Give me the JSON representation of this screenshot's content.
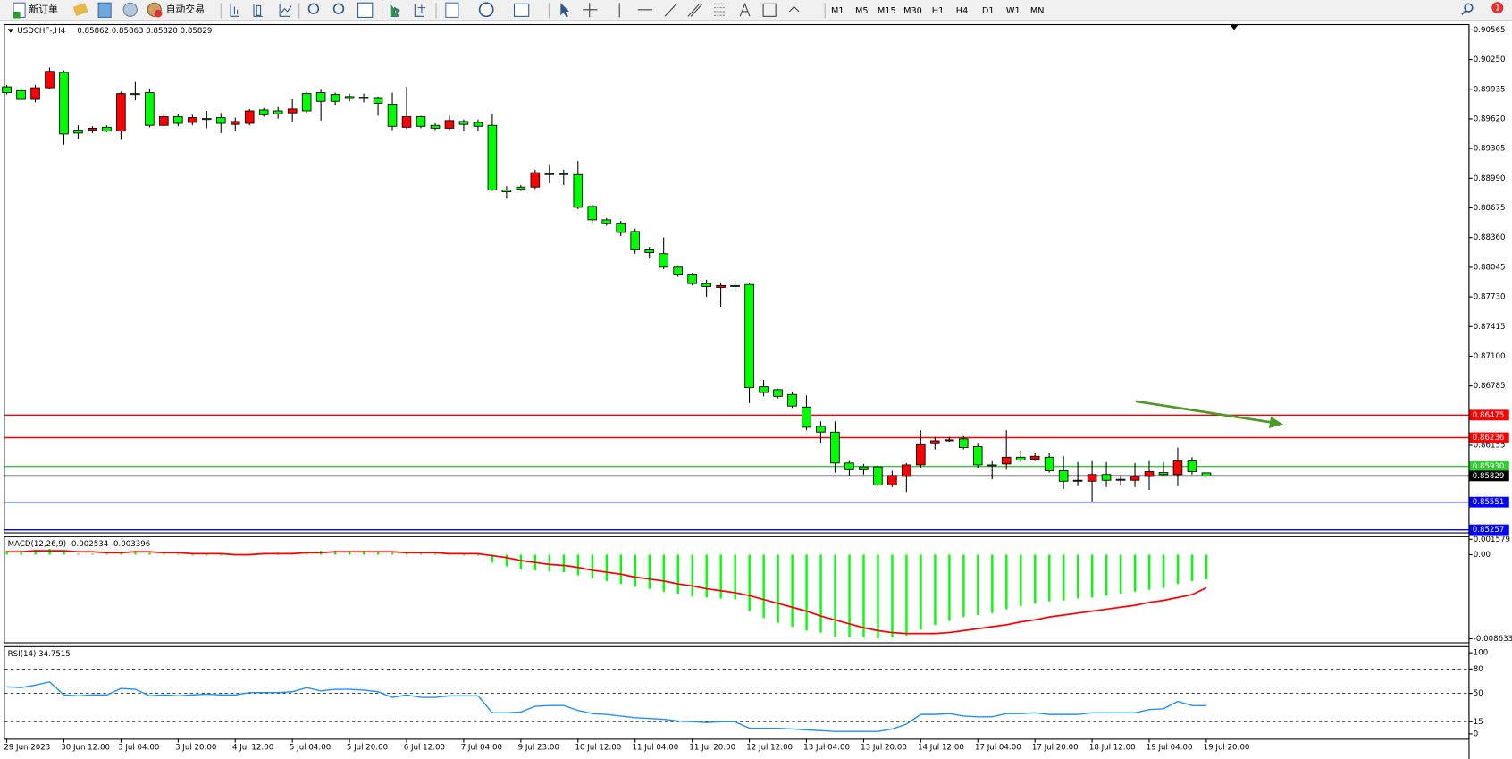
{
  "toolbar": {
    "new_order": "新订单",
    "auto_trading": "自动交易",
    "timeframes": [
      "M1",
      "M5",
      "M15",
      "M30",
      "H1",
      "H4",
      "D1",
      "W1",
      "MN"
    ],
    "notifications": "1"
  },
  "chart_data": {
    "type": "candlestick",
    "title": "USDCHF-,H4",
    "info": "0.85862 0.85863 0.85820 0.85829",
    "up_color": "#ff0000",
    "down_color": "#00ff00",
    "wick_color": "#000000",
    "categories": [
      "29 Jun 2023",
      null,
      null,
      null,
      "30 Jun 12:00",
      null,
      null,
      null,
      "3 Jul 04:00",
      null,
      null,
      null,
      "3 Jul 20:00",
      null,
      null,
      null,
      "4 Jul 12:00",
      null,
      null,
      null,
      "5 Jul 04:00",
      null,
      null,
      null,
      "5 Jul 20:00",
      null,
      null,
      null,
      "6 Jul 12:00",
      null,
      null,
      null,
      "7 Jul 04:00",
      null,
      null,
      null,
      "9 Jul 23:00",
      null,
      null,
      null,
      "10 Jul 12:00",
      null,
      null,
      null,
      "11 Jul 04:00",
      null,
      null,
      null,
      "11 Jul 20:00",
      null,
      null,
      null,
      "12 Jul 12:00",
      null,
      null,
      null,
      "13 Jul 04:00",
      null,
      null,
      null,
      "13 Jul 20:00",
      null,
      null,
      null,
      "14 Jul 12:00",
      null,
      null,
      null,
      "17 Jul 04:00",
      null,
      null,
      null,
      "17 Jul 20:00",
      null,
      null,
      null,
      "18 Jul 12:00",
      null,
      null,
      null,
      "19 Jul 04:00",
      null,
      null,
      null,
      "19 Jul 20:00"
    ],
    "open": [
      0.89961,
      0.8992,
      0.89828,
      0.89951,
      0.90114,
      0.895,
      0.895,
      0.89531,
      0.8949,
      0.89889,
      0.89899,
      0.89551,
      0.89643,
      0.89582,
      0.89623,
      0.89633,
      0.89561,
      0.89572,
      0.89715,
      0.89705,
      0.89684,
      0.89889,
      0.89899,
      0.89879,
      0.89858,
      0.89848,
      0.89838,
      0.89777,
      0.89531,
      0.89643,
      0.89551,
      0.89521,
      0.89592,
      0.89582,
      0.89551,
      0.88865,
      0.88896,
      0.88896,
      0.89039,
      0.89039,
      0.89029,
      0.88691,
      0.88548,
      0.88507,
      0.88425,
      0.8823,
      0.88189,
      0.88046,
      0.87964,
      0.87872,
      0.87831,
      0.87851,
      0.87862,
      0.86776,
      0.86745,
      0.86694,
      0.86561,
      0.86356,
      0.86295,
      0.85967,
      0.85926,
      0.85926,
      0.85732,
      0.85824,
      0.85947,
      0.86172,
      0.86203,
      0.86223,
      0.86141,
      0.85947,
      0.85957,
      0.86029,
      0.86008,
      0.86029,
      0.85885,
      0.85773,
      0.85773,
      0.85844,
      0.85793,
      0.85783,
      0.85824,
      0.85865,
      0.85844,
      0.85988,
      0.85862
    ],
    "high": [
      0.89981,
      0.8994,
      0.89981,
      0.90166,
      0.90135,
      0.89551,
      0.89541,
      0.89551,
      0.8991,
      0.90012,
      0.8994,
      0.89674,
      0.89674,
      0.89664,
      0.89705,
      0.89684,
      0.89633,
      0.89725,
      0.89736,
      0.89746,
      0.89828,
      0.8991,
      0.8993,
      0.89899,
      0.89889,
      0.89889,
      0.89858,
      0.89899,
      0.89961,
      0.89654,
      0.89572,
      0.89654,
      0.89613,
      0.89613,
      0.89674,
      0.88906,
      0.88916,
      0.8908,
      0.89131,
      0.8908,
      0.89172,
      0.88712,
      0.88568,
      0.88537,
      0.88456,
      0.88261,
      0.88363,
      0.88066,
      0.87985,
      0.87913,
      0.87882,
      0.87913,
      0.87882,
      0.86848,
      0.86756,
      0.86725,
      0.86684,
      0.86408,
      0.86408,
      0.85988,
      0.85957,
      0.85947,
      0.85885,
      0.85967,
      0.86315,
      0.86244,
      0.86244,
      0.86254,
      0.86172,
      0.85988,
      0.86315,
      0.8609,
      0.8607,
      0.8607,
      0.86039,
      0.85977,
      0.85988,
      0.85977,
      0.85834,
      0.85967,
      0.85988,
      0.85977,
      0.86131,
      0.86029,
      0.85863
    ],
    "low": [
      0.89879,
      0.89817,
      0.89797,
      0.8994,
      0.89346,
      0.89408,
      0.89469,
      0.8948,
      0.89398,
      0.89817,
      0.89531,
      0.89531,
      0.89541,
      0.89551,
      0.89521,
      0.89469,
      0.8949,
      0.89551,
      0.89643,
      0.89623,
      0.89592,
      0.89684,
      0.89602,
      0.89766,
      0.89807,
      0.89797,
      0.89654,
      0.895,
      0.8951,
      0.89521,
      0.895,
      0.895,
      0.8949,
      0.8949,
      0.88855,
      0.88773,
      0.88855,
      0.88875,
      0.88937,
      0.88916,
      0.8866,
      0.88517,
      0.88486,
      0.88374,
      0.88189,
      0.88138,
      0.88025,
      0.87944,
      0.87851,
      0.87729,
      0.87626,
      0.8779,
      0.86602,
      0.86674,
      0.86653,
      0.86551,
      0.86315,
      0.86172,
      0.85865,
      0.85834,
      0.85844,
      0.85711,
      0.85711,
      0.8566,
      0.85916,
      0.86111,
      0.86193,
      0.86111,
      0.85916,
      0.85793,
      0.85896,
      0.85977,
      0.85988,
      0.85865,
      0.85691,
      0.85721,
      0.85558,
      0.85711,
      0.85732,
      0.85711,
      0.85681,
      0.85824,
      0.85721,
      0.85844,
      0.8582
    ],
    "close": [
      0.89899,
      0.89828,
      0.89951,
      0.90125,
      0.89459,
      0.89469,
      0.89521,
      0.8949,
      0.89889,
      0.89879,
      0.89551,
      0.89643,
      0.89572,
      0.89633,
      0.89613,
      0.89572,
      0.89592,
      0.89705,
      0.89664,
      0.89674,
      0.89725,
      0.89705,
      0.89807,
      0.89807,
      0.89838,
      0.89838,
      0.89787,
      0.89541,
      0.89643,
      0.89541,
      0.89521,
      0.89602,
      0.89561,
      0.89541,
      0.88865,
      0.88845,
      0.88875,
      0.89049,
      0.89029,
      0.89029,
      0.88681,
      0.88548,
      0.88507,
      0.88415,
      0.8823,
      0.882,
      0.88046,
      0.87964,
      0.87872,
      0.87841,
      0.87851,
      0.87846,
      0.86766,
      0.86715,
      0.86674,
      0.86571,
      0.86346,
      0.86295,
      0.85967,
      0.85896,
      0.85896,
      0.85732,
      0.85834,
      0.85947,
      0.86162,
      0.86203,
      0.86213,
      0.86131,
      0.85947,
      0.85937,
      0.86029,
      0.85998,
      0.86039,
      0.85885,
      0.85773,
      0.85783,
      0.85844,
      0.85783,
      0.85788,
      0.85824,
      0.85875,
      0.85844,
      0.85988,
      0.85875,
      0.85829
    ],
    "ylim": [
      0.8523,
      0.90626
    ],
    "yticks": [
      0.90565,
      {
        "value": 0.9025,
        "label": "0.90250"
      },
      0.89935,
      {
        "value": 0.8962,
        "label": "0.89620"
      },
      0.89305,
      {
        "value": 0.8899,
        "label": "0.88990"
      },
      0.88675,
      {
        "value": 0.8836,
        "label": "0.88360"
      },
      0.88045,
      {
        "value": 0.8773,
        "label": "0.87730"
      },
      0.87415,
      {
        "value": 0.871,
        "label": "0.87100"
      },
      0.86785,
      0.86155
    ],
    "levels": [
      {
        "value": 0.86475,
        "label": "0.86475",
        "color": "#ff0000"
      },
      {
        "value": 0.86236,
        "label": "0.86236",
        "color": "#ff0000"
      },
      {
        "value": 0.8593,
        "label": "0.85930",
        "color": "#32cd32"
      },
      {
        "value": 0.85829,
        "label": "0.85829",
        "color": "#000000"
      },
      {
        "value": 0.85551,
        "label": "0.85551",
        "color": "#0000ff"
      },
      {
        "value": 0.85257,
        "label": "0.85257",
        "color": "#0000ff"
      }
    ],
    "macd": {
      "title": "MACD(12,26,9) -0.002534 -0.003396",
      "ylim": [
        -0.0091,
        0.0018
      ],
      "yticks": [
        0.001579,
        {
          "value": 0,
          "label": "0.00"
        },
        -0.008633
      ],
      "histogram": {
        "color": "#00ff00",
        "values": [
          0.0004,
          0.0004,
          0.0005,
          0.0006,
          0.0003,
          0.0001,
          0.0001,
          0.0001,
          0.0003,
          0.0004,
          0.0002,
          0.0001,
          0.0001,
          0,
          0,
          0,
          0,
          0.0001,
          0.0001,
          0.0002,
          0.0002,
          0.0003,
          0.0004,
          0.0004,
          0.0004,
          0.0004,
          0.0003,
          0.0002,
          0.0002,
          0.0001,
          0.0001,
          0.0001,
          0,
          -0.0001,
          -0.0008,
          -0.0012,
          -0.0015,
          -0.0016,
          -0.0017,
          -0.0018,
          -0.0021,
          -0.0024,
          -0.0027,
          -0.003,
          -0.0033,
          -0.0035,
          -0.0038,
          -0.004,
          -0.0043,
          -0.0044,
          -0.0045,
          -0.0046,
          -0.0058,
          -0.0065,
          -0.007,
          -0.0074,
          -0.0078,
          -0.008,
          -0.0084,
          -0.0085,
          -0.0085,
          -0.0086,
          -0.0085,
          -0.0083,
          -0.0077,
          -0.0072,
          -0.0068,
          -0.0064,
          -0.0062,
          -0.006,
          -0.0056,
          -0.0053,
          -0.005,
          -0.0048,
          -0.0047,
          -0.0045,
          -0.0044,
          -0.0042,
          -0.004,
          -0.0038,
          -0.0036,
          -0.0034,
          -0.003,
          -0.0027,
          -0.002534
        ]
      },
      "signal": {
        "color": "#ff0000",
        "values": [
          0.0003,
          0.0003,
          0.0004,
          0.0004,
          0.0004,
          0.0003,
          0.0003,
          0.0002,
          0.0002,
          0.0003,
          0.0003,
          0.0002,
          0.0002,
          0.0001,
          0.0001,
          0.0001,
          0,
          0,
          0.0001,
          0.0001,
          0.0001,
          0.0002,
          0.0002,
          0.0003,
          0.0003,
          0.0003,
          0.0003,
          0.0003,
          0.0002,
          0.0002,
          0.0002,
          0.0001,
          0.0001,
          0.0001,
          -0.0001,
          -0.0003,
          -0.0006,
          -0.0008,
          -0.001,
          -0.0011,
          -0.0013,
          -0.0016,
          -0.0018,
          -0.002,
          -0.0023,
          -0.0025,
          -0.0027,
          -0.003,
          -0.0032,
          -0.0035,
          -0.0037,
          -0.0039,
          -0.0042,
          -0.0046,
          -0.005,
          -0.0054,
          -0.0058,
          -0.0063,
          -0.0067,
          -0.0071,
          -0.0075,
          -0.0078,
          -0.008,
          -0.0081,
          -0.0081,
          -0.0081,
          -0.008,
          -0.0078,
          -0.0076,
          -0.0074,
          -0.0072,
          -0.0069,
          -0.0067,
          -0.0064,
          -0.0062,
          -0.006,
          -0.0058,
          -0.0056,
          -0.0054,
          -0.0052,
          -0.0049,
          -0.0047,
          -0.0044,
          -0.0041,
          -0.003396
        ]
      }
    },
    "rsi": {
      "title": "RSI(14) 34.7515",
      "color": "#1e90ff",
      "ylim": [
        -6,
        107
      ],
      "yticks": [
        100,
        80,
        50,
        15,
        0
      ],
      "levels": [
        80,
        50,
        15
      ],
      "values": [
        58,
        57,
        60,
        64,
        48,
        47,
        48,
        48,
        56,
        55,
        47,
        48,
        47,
        48,
        49,
        48,
        48,
        51,
        51,
        51,
        52,
        57,
        53,
        55,
        55,
        54,
        52,
        45,
        48,
        45,
        45,
        47,
        47,
        47,
        26,
        26,
        27,
        34,
        35,
        35,
        29,
        25,
        24,
        22,
        20,
        19,
        18,
        16,
        15,
        14,
        15,
        15,
        7,
        7,
        7,
        6,
        5,
        4,
        3,
        3,
        3,
        3,
        6,
        12,
        24,
        24,
        25,
        22,
        21,
        21,
        25,
        25,
        26,
        24,
        24,
        24,
        26,
        26,
        26,
        26,
        30,
        31,
        40,
        35,
        34.7515
      ]
    }
  }
}
